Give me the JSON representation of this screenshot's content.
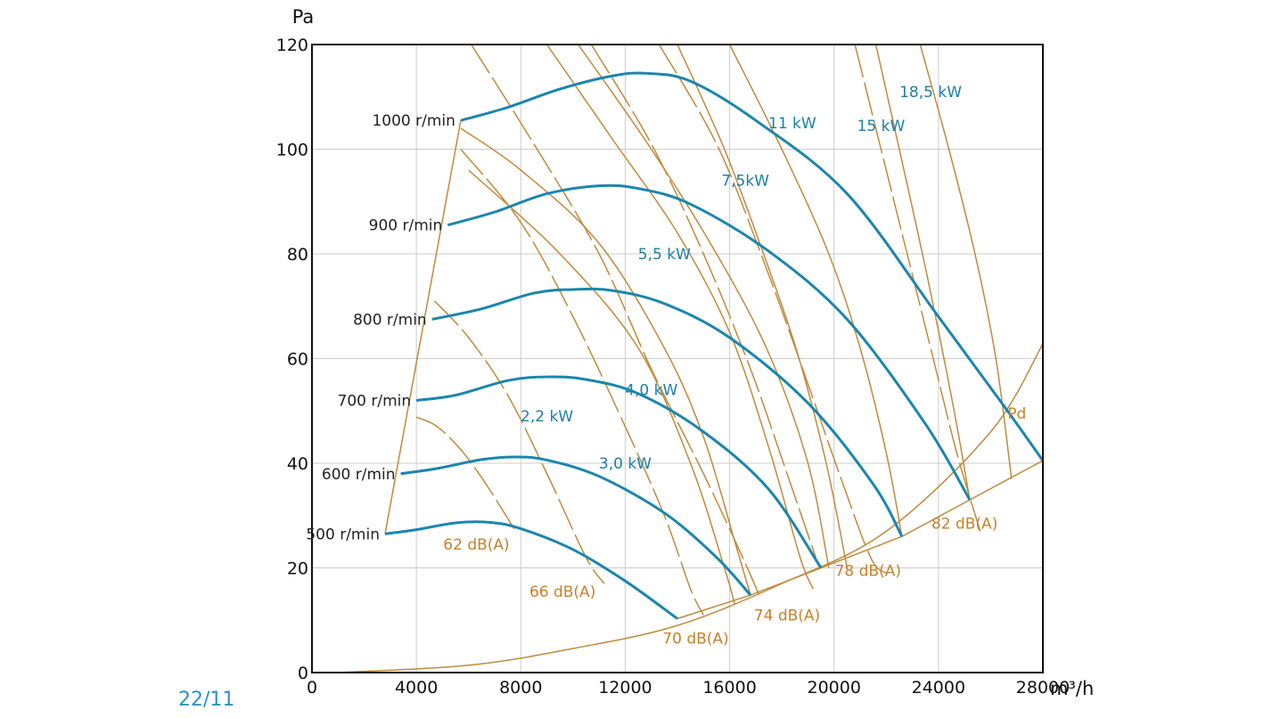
{
  "page_number": "22/11",
  "chart_data": {
    "type": "line",
    "xlabel": "m³/h",
    "ylabel": "Pa",
    "xlim": [
      0,
      28000
    ],
    "ylim": [
      0,
      120
    ],
    "x_ticks": [
      "0",
      "4000",
      "8000",
      "12000",
      "16000",
      "20000",
      "24000",
      "28000"
    ],
    "y_ticks": [
      "0",
      "20",
      "40",
      "60",
      "80",
      "100",
      "120"
    ],
    "grid": true,
    "colors": {
      "speed": "#1a86ad",
      "brown": "#c08a3e",
      "axis": "#111111",
      "grid": "#cccccc",
      "page": "#2b93c1"
    },
    "speed_curves": [
      {
        "name": "500 r/min",
        "points": [
          [
            2800,
            26.5
          ],
          [
            4000,
            27.3
          ],
          [
            5500,
            28.6
          ],
          [
            6800,
            28.7
          ],
          [
            8000,
            27.5
          ],
          [
            10000,
            23.5
          ],
          [
            12000,
            17.5
          ],
          [
            14000,
            10.3
          ]
        ]
      },
      {
        "name": "600 r/min",
        "points": [
          [
            3400,
            38
          ],
          [
            4800,
            39
          ],
          [
            6500,
            40.7
          ],
          [
            7800,
            41.2
          ],
          [
            9000,
            40.6
          ],
          [
            11000,
            37.5
          ],
          [
            13500,
            30.5
          ],
          [
            15500,
            22
          ],
          [
            16800,
            14.8
          ]
        ]
      },
      {
        "name": "700 r/min",
        "points": [
          [
            4000,
            52
          ],
          [
            5500,
            53
          ],
          [
            7500,
            55.8
          ],
          [
            9000,
            56.5
          ],
          [
            10500,
            56
          ],
          [
            12500,
            53.3
          ],
          [
            15000,
            46
          ],
          [
            17500,
            35
          ],
          [
            19500,
            20
          ]
        ]
      },
      {
        "name": "800 r/min",
        "points": [
          [
            4600,
            67.5
          ],
          [
            6500,
            69.5
          ],
          [
            8500,
            72.5
          ],
          [
            10000,
            73.2
          ],
          [
            11500,
            73
          ],
          [
            13500,
            70.5
          ],
          [
            16000,
            64
          ],
          [
            19000,
            51.5
          ],
          [
            21500,
            36
          ],
          [
            22600,
            26
          ]
        ]
      },
      {
        "name": "900 r/min",
        "points": [
          [
            5200,
            85.5
          ],
          [
            7000,
            88
          ],
          [
            9000,
            91.5
          ],
          [
            11000,
            93
          ],
          [
            12500,
            92.5
          ],
          [
            14500,
            89.5
          ],
          [
            17500,
            80.5
          ],
          [
            20500,
            67.5
          ],
          [
            23500,
            47.5
          ],
          [
            25200,
            33
          ]
        ]
      },
      {
        "name": "1000 r/min",
        "points": [
          [
            5700,
            105.5
          ],
          [
            7500,
            108
          ],
          [
            9500,
            111.5
          ],
          [
            11500,
            114
          ],
          [
            12800,
            114.5
          ],
          [
            14500,
            113
          ],
          [
            17000,
            105.5
          ],
          [
            20500,
            91.5
          ],
          [
            24000,
            68
          ],
          [
            26500,
            51
          ],
          [
            28000,
            40.5
          ]
        ]
      }
    ],
    "speed_labels": [
      {
        "text": "500 r/min",
        "x": 2800,
        "y": 26.5
      },
      {
        "text": "600 r/min",
        "x": 3400,
        "y": 38
      },
      {
        "text": "700 r/min",
        "x": 4000,
        "y": 52
      },
      {
        "text": "800 r/min",
        "x": 4600,
        "y": 67.5
      },
      {
        "text": "900 r/min",
        "x": 5200,
        "y": 85.5
      },
      {
        "text": "1000 r/min",
        "x": 5700,
        "y": 105.5
      }
    ],
    "power_labels": [
      {
        "text": "2,2 kW",
        "x": 9000,
        "y": 48
      },
      {
        "text": "3,0 kW",
        "x": 12000,
        "y": 39
      },
      {
        "text": "4,0 kW",
        "x": 13000,
        "y": 53
      },
      {
        "text": "5,5 kW",
        "x": 13500,
        "y": 79
      },
      {
        "text": "7,5kW",
        "x": 16600,
        "y": 93
      },
      {
        "text": "11 kW",
        "x": 18400,
        "y": 104
      },
      {
        "text": "15 kW",
        "x": 21800,
        "y": 103.5
      },
      {
        "text": "18,5 kW",
        "x": 23700,
        "y": 110
      }
    ],
    "noise_labels": [
      {
        "text": "62 dB(A)",
        "x": 6300,
        "y": 23.5
      },
      {
        "text": "66 dB(A)",
        "x": 9600,
        "y": 14.5
      },
      {
        "text": "70 dB(A)",
        "x": 14700,
        "y": 5.5
      },
      {
        "text": "74 dB(A)",
        "x": 18200,
        "y": 10
      },
      {
        "text": "78 dB(A)",
        "x": 21300,
        "y": 18.5
      },
      {
        "text": "82 dB(A)",
        "x": 25000,
        "y": 27.5
      }
    ],
    "pd_label": {
      "text": "Pd",
      "x": 27000,
      "y": 48.5
    },
    "pd_curve": [
      [
        900,
        0
      ],
      [
        6000,
        1.4
      ],
      [
        10000,
        4.6
      ],
      [
        14000,
        9
      ],
      [
        18000,
        17
      ],
      [
        22000,
        27
      ],
      [
        26000,
        46
      ],
      [
        28000,
        62.8
      ]
    ],
    "envelope_left": [
      [
        2800,
        26.5
      ],
      [
        5700,
        105.5
      ]
    ],
    "envelope_right": [
      [
        14000,
        10.3
      ],
      [
        16800,
        14.8
      ],
      [
        19500,
        20
      ],
      [
        22600,
        26
      ],
      [
        25200,
        33
      ],
      [
        28000,
        40.5
      ]
    ],
    "power_lines": [
      [
        [
          5700,
          104
        ],
        [
          8000,
          96
        ],
        [
          11000,
          82
        ],
        [
          13500,
          62
        ],
        [
          15000,
          45
        ],
        [
          16200,
          25
        ],
        [
          16800,
          14.8
        ]
      ],
      [
        [
          6000,
          96
        ],
        [
          9500,
          80
        ],
        [
          12500,
          62
        ],
        [
          14500,
          40
        ],
        [
          15800,
          20
        ],
        [
          16200,
          13
        ]
      ],
      [
        [
          9000,
          120
        ],
        [
          11500,
          102
        ],
        [
          14000,
          84
        ],
        [
          16000,
          65
        ],
        [
          17500,
          43
        ],
        [
          18700,
          22
        ],
        [
          19200,
          16
        ]
      ],
      [
        [
          10200,
          120
        ],
        [
          13000,
          100
        ],
        [
          15500,
          80
        ],
        [
          17500,
          61
        ],
        [
          19000,
          40
        ],
        [
          19800,
          20
        ]
      ],
      [
        [
          14000,
          120
        ],
        [
          15800,
          100
        ],
        [
          17300,
          80
        ],
        [
          18600,
          61
        ],
        [
          19700,
          40
        ],
        [
          20500,
          20
        ]
      ],
      [
        [
          16000,
          120
        ],
        [
          18000,
          100
        ],
        [
          19800,
          80
        ],
        [
          21000,
          62
        ],
        [
          22000,
          42
        ],
        [
          22600,
          26
        ]
      ],
      [
        [
          21600,
          120
        ],
        [
          22500,
          100
        ],
        [
          23600,
          75
        ],
        [
          24600,
          50
        ],
        [
          25200,
          33
        ]
      ],
      [
        [
          23300,
          120
        ],
        [
          24400,
          100
        ],
        [
          25400,
          80
        ],
        [
          26200,
          60
        ],
        [
          26800,
          37
        ]
      ]
    ],
    "noise_lines": [
      [
        [
          4000,
          48.8
        ],
        [
          4800,
          47
        ],
        [
          5800,
          42
        ],
        [
          6800,
          35
        ],
        [
          7800,
          27
        ]
      ],
      [
        [
          4700,
          71
        ],
        [
          6000,
          64
        ],
        [
          7500,
          53
        ],
        [
          9000,
          38
        ],
        [
          10500,
          22
        ],
        [
          11200,
          17
        ]
      ],
      [
        [
          5700,
          100
        ],
        [
          8000,
          86
        ],
        [
          10000,
          68
        ],
        [
          12000,
          47
        ],
        [
          13500,
          30
        ],
        [
          14500,
          16
        ],
        [
          15000,
          11
        ]
      ],
      [
        [
          6100,
          120
        ],
        [
          8500,
          101
        ],
        [
          11000,
          80
        ],
        [
          13000,
          58
        ],
        [
          15000,
          38
        ],
        [
          16500,
          22
        ],
        [
          17200,
          14
        ]
      ],
      [
        [
          10700,
          120
        ],
        [
          13000,
          101
        ],
        [
          15000,
          80
        ],
        [
          16800,
          58
        ],
        [
          18200,
          38
        ],
        [
          19300,
          22
        ]
      ],
      [
        [
          13300,
          120
        ],
        [
          15500,
          101
        ],
        [
          17200,
          80
        ],
        [
          18800,
          58
        ],
        [
          20200,
          38
        ],
        [
          21400,
          22
        ],
        [
          22000,
          19
        ]
      ],
      [
        [
          20800,
          120
        ],
        [
          21800,
          100
        ],
        [
          22800,
          80
        ],
        [
          23800,
          60
        ],
        [
          24700,
          42
        ],
        [
          25600,
          27
        ]
      ]
    ]
  }
}
